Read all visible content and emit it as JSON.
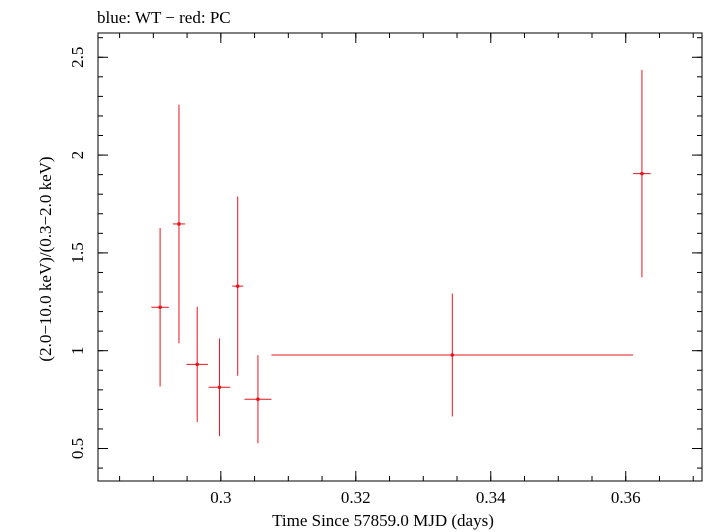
{
  "chart_data": {
    "type": "scatter",
    "title": "blue: WT − red: PC",
    "xlabel": "Time Since 57859.0 MJD (days)",
    "ylabel": "(2.0−10.0 keV)/(0.3−2.0 keV)",
    "xlim": [
      0.2818,
      0.3713
    ],
    "ylim": [
      0.334,
      2.624
    ],
    "x_ticks": [
      {
        "value": 0.3,
        "label": "0.3"
      },
      {
        "value": 0.32,
        "label": "0.32"
      },
      {
        "value": 0.34,
        "label": "0.34"
      },
      {
        "value": 0.36,
        "label": "0.36"
      }
    ],
    "y_ticks": [
      {
        "value": 0.5,
        "label": "0.5"
      },
      {
        "value": 1.0,
        "label": "1"
      },
      {
        "value": 1.5,
        "label": "1.5"
      },
      {
        "value": 2.0,
        "label": "2"
      },
      {
        "value": 2.5,
        "label": "2.5"
      }
    ],
    "x_minor_step": 0.005,
    "y_minor_step": 0.1,
    "series": [
      {
        "name": "PC",
        "color": "#e8141b",
        "points": [
          {
            "x": 0.291,
            "xerr": 0.0013,
            "y": 1.222,
            "yerr": 0.405
          },
          {
            "x": 0.2938,
            "xerr": 0.0009,
            "y": 1.648,
            "yerr": 0.61
          },
          {
            "x": 0.2965,
            "xerr": 0.0016,
            "y": 0.93,
            "yerr": 0.295
          },
          {
            "x": 0.2998,
            "xerr": 0.0016,
            "y": 0.813,
            "yerr": 0.25
          },
          {
            "x": 0.3025,
            "xerr": 0.0008,
            "y": 1.33,
            "yerr": 0.458
          },
          {
            "x": 0.3055,
            "xerr": 0.002,
            "y": 0.752,
            "yerr": 0.225
          },
          {
            "x": 0.3343,
            "xerr": 0.0268,
            "y": 0.978,
            "yerr": 0.314
          },
          {
            "x": 0.3624,
            "xerr": 0.0013,
            "y": 1.905,
            "yerr": 0.53
          }
        ]
      }
    ]
  }
}
